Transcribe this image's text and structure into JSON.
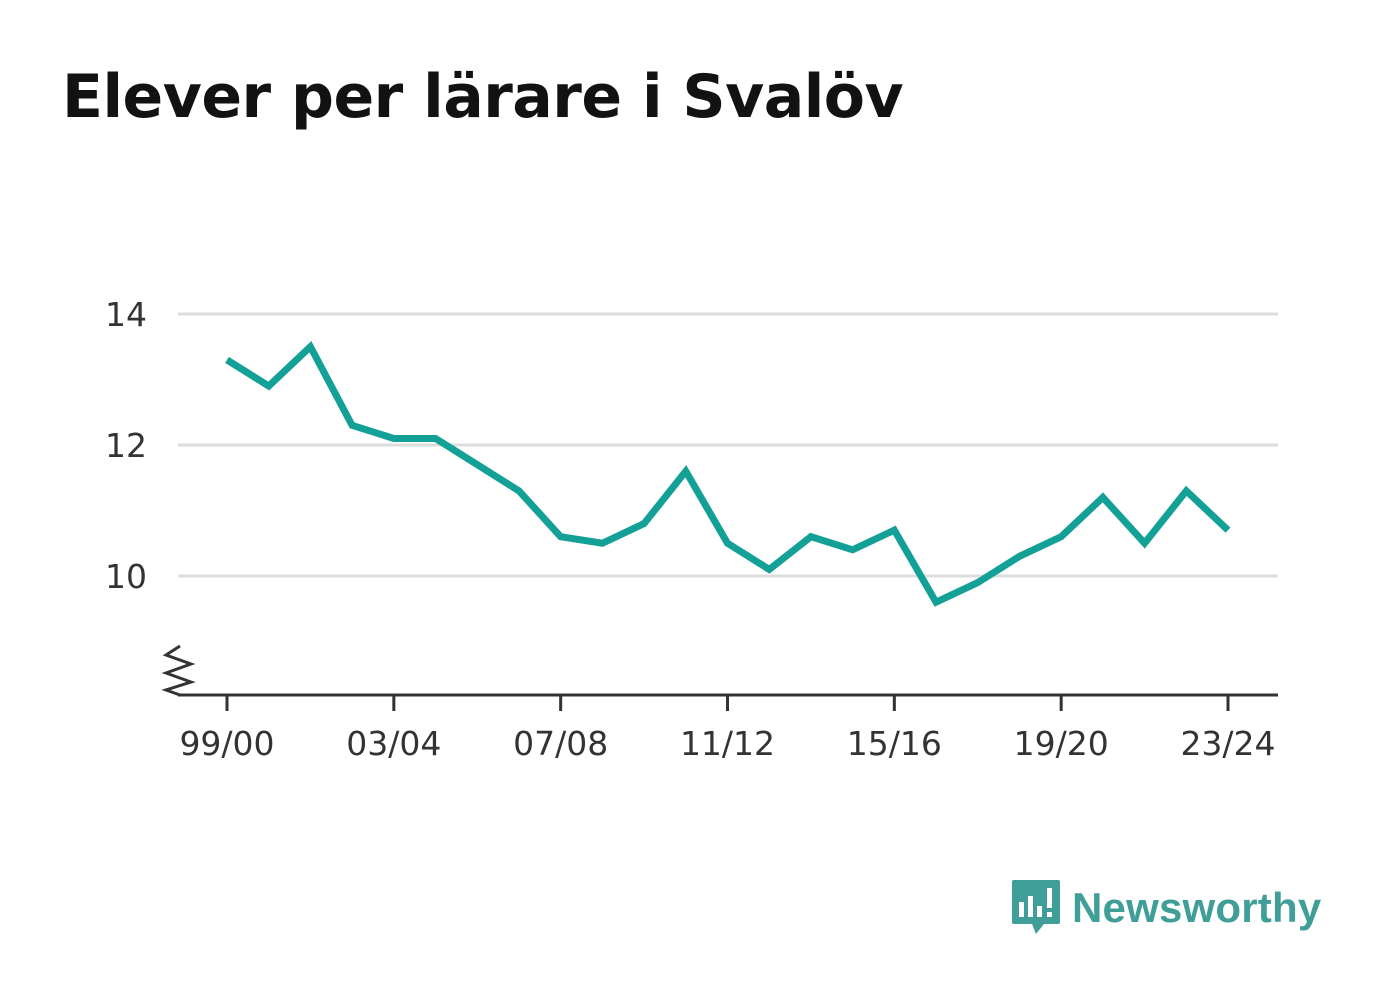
{
  "title": "Elever per lärare i Svalöv",
  "brand": {
    "name": "Newsworthy",
    "icon": "newsworthy-logo-icon",
    "color": "#3f9e97"
  },
  "colors": {
    "line": "#13a096",
    "grid": "#dddddd",
    "axis": "#333333"
  },
  "chart_data": {
    "type": "line",
    "title": "Elever per lärare i Svalöv",
    "xlabel": "",
    "ylabel": "",
    "categories": [
      "99/00",
      "00/01",
      "01/02",
      "02/03",
      "03/04",
      "04/05",
      "05/06",
      "06/07",
      "07/08",
      "08/09",
      "09/10",
      "10/11",
      "11/12",
      "12/13",
      "13/14",
      "14/15",
      "15/16",
      "16/17",
      "17/18",
      "18/19",
      "19/20",
      "20/21",
      "21/22",
      "22/23",
      "23/24"
    ],
    "x_tick_labels": [
      "99/00",
      "03/04",
      "07/08",
      "11/12",
      "15/16",
      "19/20",
      "23/24"
    ],
    "series": [
      {
        "values": [
          13.3,
          12.9,
          13.5,
          12.3,
          12.1,
          12.1,
          11.7,
          11.3,
          10.6,
          10.5,
          10.8,
          11.6,
          10.5,
          10.1,
          10.6,
          10.4,
          10.7,
          9.6,
          9.9,
          10.3,
          10.6,
          11.2,
          10.5,
          11.3,
          10.7
        ]
      }
    ],
    "y_ticks": [
      10,
      12,
      14
    ],
    "ylim": [
      8.2,
      14
    ],
    "y_axis_break": true,
    "grid": true,
    "legend": "none"
  }
}
